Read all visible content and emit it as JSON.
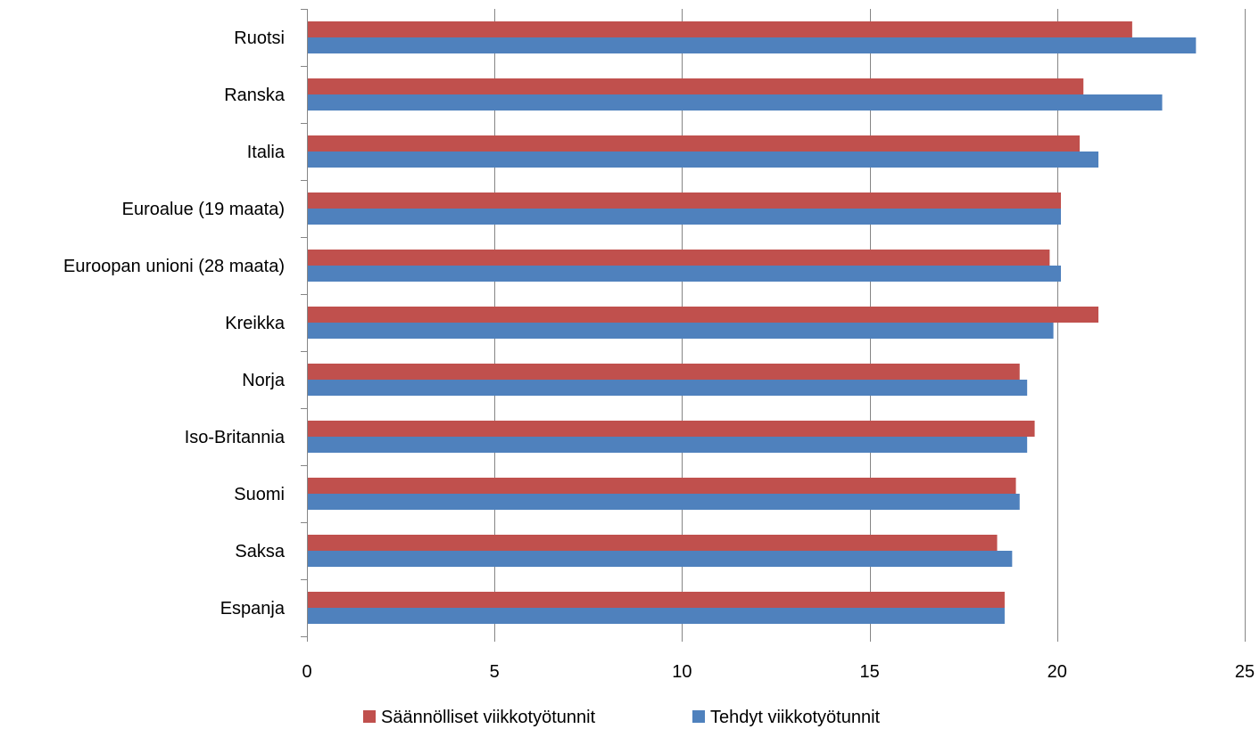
{
  "chart_data": {
    "type": "bar",
    "orientation": "horizontal",
    "categories": [
      "Ruotsi",
      "Ranska",
      "Italia",
      "Euroalue (19 maata)",
      "Euroopan unioni (28 maata)",
      "Kreikka",
      "Norja",
      "Iso-Britannia",
      "Suomi",
      "Saksa",
      "Espanja"
    ],
    "series": [
      {
        "name": "Säännölliset viikkotyötunnit",
        "color": "#C0504D",
        "values": [
          22.0,
          20.7,
          20.6,
          20.1,
          19.8,
          21.1,
          19.0,
          19.4,
          18.9,
          18.4,
          18.6
        ]
      },
      {
        "name": "Tehdyt viikkotyötunnit",
        "color": "#4F81BD",
        "values": [
          23.7,
          22.8,
          21.1,
          20.1,
          20.1,
          19.9,
          19.2,
          19.2,
          19.0,
          18.8,
          18.6
        ]
      }
    ],
    "xlim": [
      0,
      25
    ],
    "xticks": [
      "0",
      "5",
      "10",
      "15",
      "20",
      "25"
    ],
    "grid": "vertical",
    "legend_position": "bottom"
  }
}
